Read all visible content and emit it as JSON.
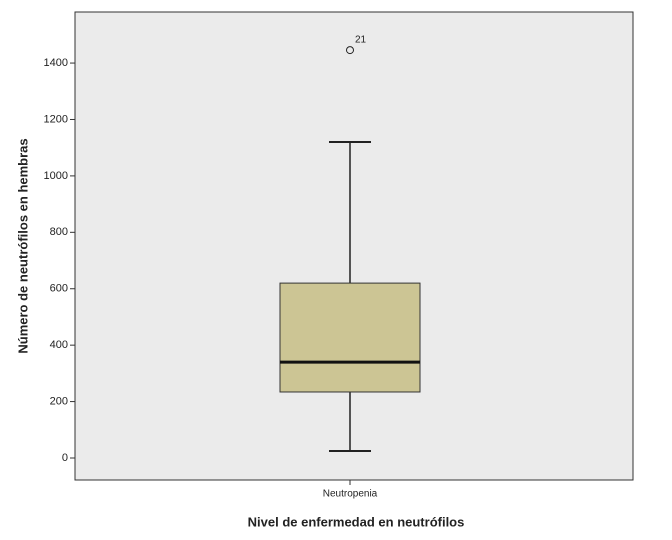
{
  "chart_data": {
    "type": "box",
    "x_label": "Nivel de enfermedad en neutrófilos",
    "y_label": "Número de neutrófilos en hembras",
    "categories": [
      "Neutropenia"
    ],
    "boxes": [
      {
        "whisker_low": 25,
        "q1": 234,
        "median": 340,
        "q3": 620,
        "whisker_high": 1120,
        "outliers": [
          {
            "value": 1446,
            "label": "21"
          }
        ]
      }
    ],
    "color": "#ccc594",
    "ylim": [
      -78,
      1581
    ],
    "yticks": [
      0,
      200,
      400,
      600,
      800,
      1000,
      1200,
      1400
    ]
  }
}
